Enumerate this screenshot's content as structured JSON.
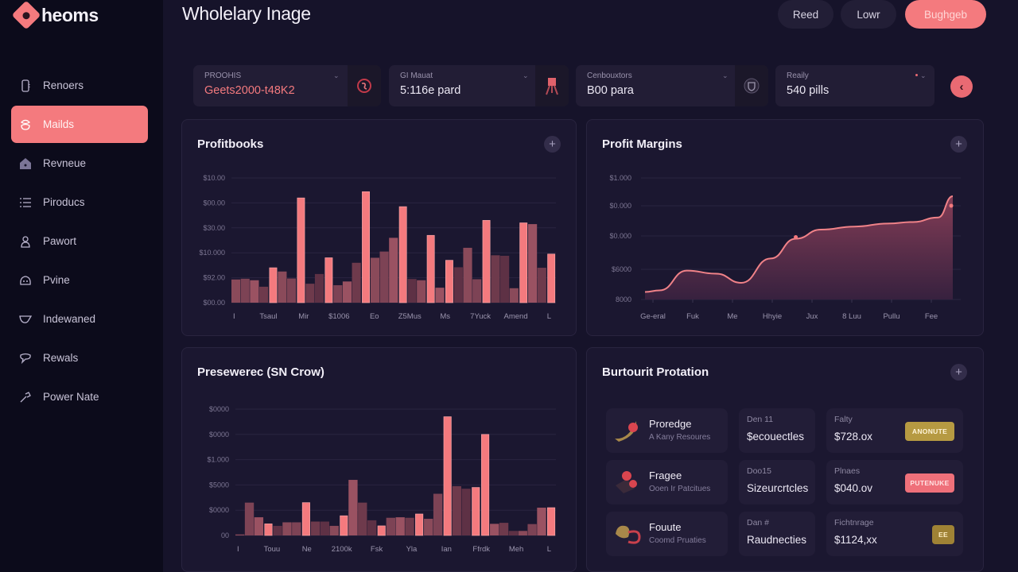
{
  "app": {
    "logo_text": "heoms",
    "title": "Wholelary Inage"
  },
  "header": {
    "buttons": [
      {
        "label": "Reed",
        "primary": false
      },
      {
        "label": "Lowr",
        "primary": false
      },
      {
        "label": "Bughgeb",
        "primary": true
      }
    ]
  },
  "sidebar": {
    "items": [
      {
        "label": "Renoers",
        "icon": "device-icon",
        "active": false
      },
      {
        "label": "Mailds",
        "icon": "mail-icon",
        "active": true
      },
      {
        "label": "Revneue",
        "icon": "home-icon",
        "active": false
      },
      {
        "label": "Piroducs",
        "icon": "list-icon",
        "active": false
      },
      {
        "label": "Pawort",
        "icon": "user-icon",
        "active": false
      },
      {
        "label": "Pvine",
        "icon": "cloud-icon",
        "active": false
      },
      {
        "label": "Indewaned",
        "icon": "inbox-icon",
        "active": false
      },
      {
        "label": "Rewals",
        "icon": "chat-icon",
        "active": false
      },
      {
        "label": "Power Nate",
        "icon": "tool-icon",
        "active": false
      }
    ]
  },
  "kpis": [
    {
      "label": "PROOHIS",
      "value": "Geets2000-t48K2",
      "accent": true,
      "icon": "rose-icon"
    },
    {
      "label": "GI Mauat",
      "value": "5:116e pard",
      "accent": false,
      "icon": "easel-icon"
    },
    {
      "label": "Cenbouxtors",
      "value": "B00 para",
      "accent": false,
      "icon": "shield-icon"
    },
    {
      "label": "Reaily",
      "value": "540 pills",
      "accent": false,
      "icon": ""
    }
  ],
  "accent_color": "#f47a7e",
  "panels": {
    "profitbooks": {
      "title": "Profitbooks"
    },
    "margins": {
      "title": "Profit Margins"
    },
    "preseweres": {
      "title": "Presewerес (SN Crow)"
    },
    "protection": {
      "title": "Burtourit Protation"
    }
  },
  "chart_data": [
    {
      "type": "bar",
      "title": "Profitbooks",
      "yticks": [
        "$00.00",
        "$92.00",
        "$10.000",
        "$30.00",
        "$00.00",
        "$10.00"
      ],
      "ylim": [
        0,
        5
      ],
      "xticks": [
        "I",
        "Tsaul",
        "Mir",
        "$1006",
        "Eo",
        "Z5Mus",
        "Ms",
        "7Yuck",
        "Amend",
        "L"
      ],
      "values": [
        0.93,
        0.96,
        0.9,
        0.64,
        1.4,
        1.25,
        0.97,
        4.2,
        0.76,
        1.15,
        1.8,
        0.7,
        0.85,
        1.6,
        4.45,
        1.8,
        2.05,
        2.6,
        3.85,
        0.95,
        0.9,
        2.7,
        0.6,
        1.7,
        1.42,
        2.2,
        0.94,
        3.3,
        1.9,
        1.88,
        0.58,
        3.2,
        3.15,
        1.4,
        1.95
      ],
      "highlight": [
        false,
        false,
        false,
        false,
        true,
        false,
        false,
        true,
        false,
        false,
        true,
        false,
        false,
        false,
        true,
        false,
        false,
        false,
        true,
        false,
        false,
        true,
        false,
        true,
        false,
        false,
        false,
        true,
        false,
        false,
        false,
        true,
        false,
        false,
        true
      ],
      "grid": true
    },
    {
      "type": "area",
      "title": "Profit Margins",
      "yticks": [
        "8000",
        "$6000",
        "$0.000",
        "$0.000",
        "$1.000"
      ],
      "ylim": [
        0,
        4
      ],
      "xticks": [
        "Ge-eral",
        "Fuk",
        "Me",
        "Hhyie",
        "Jux",
        "8 Luu",
        "Pullu",
        "Fee"
      ],
      "x": [
        0,
        0.35,
        1.0,
        1.7,
        2.3,
        3.0,
        3.6,
        4.2,
        5.0,
        5.8,
        6.4,
        7.0,
        7.35
      ],
      "values": [
        0.25,
        0.3,
        0.95,
        0.85,
        0.55,
        1.35,
        2.0,
        2.3,
        2.4,
        2.5,
        2.55,
        2.7,
        3.4
      ],
      "grid": true
    },
    {
      "type": "bar",
      "title": "Presewerес (SN Crow)",
      "yticks": [
        "00",
        "$0000",
        "$5000",
        "$1.000",
        "$0000",
        "$0000"
      ],
      "ylim": [
        0,
        5
      ],
      "xticks": [
        "I",
        "Touu",
        "Ne",
        "2100k",
        "Fsk",
        "Yla",
        "Ian",
        "Ffrdk",
        "Meh",
        "L"
      ],
      "values": [
        0.04,
        1.3,
        0.72,
        0.46,
        0.38,
        0.52,
        0.52,
        1.3,
        0.55,
        0.55,
        0.38,
        0.78,
        2.2,
        1.3,
        0.6,
        0.38,
        0.7,
        0.72,
        0.7,
        0.85,
        0.66,
        1.65,
        4.7,
        1.95,
        1.85,
        1.9,
        4.0,
        0.46,
        0.5,
        0.18,
        0.18,
        0.45,
        1.1,
        1.1
      ],
      "highlight": [
        false,
        false,
        false,
        true,
        false,
        false,
        false,
        true,
        false,
        false,
        false,
        true,
        false,
        false,
        false,
        true,
        false,
        false,
        false,
        true,
        false,
        false,
        true,
        false,
        false,
        true,
        true,
        false,
        false,
        false,
        false,
        false,
        false,
        true
      ],
      "grid": true
    }
  ],
  "protection": {
    "rows": [
      {
        "name": "Proredge",
        "sub": "A Kany Resoures",
        "icon": "banana-icon",
        "col2_label": "Den 11",
        "col2_value": "$ecouectles",
        "col3_label": "Falty",
        "col3_value": "$728.ox",
        "pill": "ANONUTE",
        "pill_bg": "#b69a42",
        "pill_fg": "#fff4d8"
      },
      {
        "name": "Fragee",
        "sub": "Ooen Ir Patcitues",
        "icon": "coins-icon",
        "col2_label": "Doo15",
        "col2_value": "Sizeurcrtcles",
        "col3_label": "Plnaes",
        "col3_value": "$040.ov",
        "pill": "PUTENUKE",
        "pill_bg": "#ef707a",
        "pill_fg": "#ffe3e3"
      },
      {
        "name": "Fouute",
        "sub": "Coomd Pruaties",
        "icon": "animal-icon",
        "col2_label": "Dan #",
        "col2_value": "Raudnecties",
        "col3_label": "Fichtnrage",
        "col3_value": "$1124,xx",
        "pill": "EE",
        "pill_bg": "#9f8235",
        "pill_fg": "#fff0c6"
      }
    ]
  }
}
